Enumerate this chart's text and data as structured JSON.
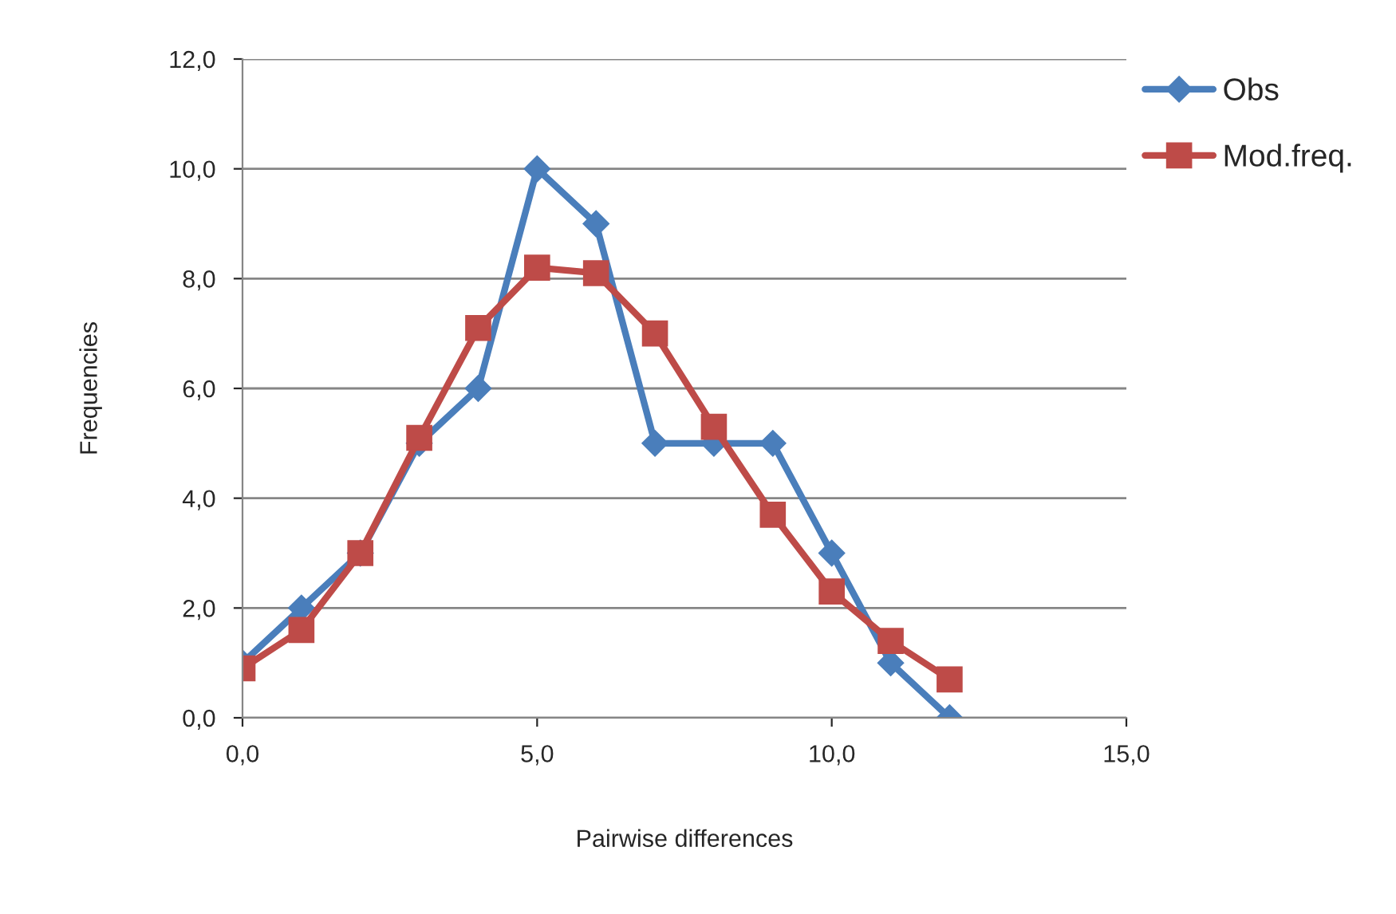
{
  "chart_data": {
    "type": "line",
    "xlabel": "Pairwise differences",
    "ylabel": "Frequencies",
    "x": [
      0,
      1,
      2,
      3,
      4,
      5,
      6,
      7,
      8,
      9,
      10,
      11,
      12
    ],
    "series": [
      {
        "name": "Obs",
        "color": "#4a7ebb",
        "marker": "diamond",
        "values": [
          1,
          2,
          3,
          5,
          6,
          10,
          9,
          5,
          5,
          5,
          3,
          1,
          0
        ]
      },
      {
        "name": "Mod.freq.",
        "color": "#be4b48",
        "marker": "square",
        "values": [
          0.9,
          1.6,
          3.0,
          5.1,
          7.1,
          8.2,
          8.1,
          7.0,
          5.3,
          3.7,
          2.3,
          1.4,
          0.7
        ]
      }
    ],
    "xlim": [
      0,
      15
    ],
    "xticks": [
      {
        "value": 0,
        "label": "0,0"
      },
      {
        "value": 5,
        "label": "5,0"
      },
      {
        "value": 10,
        "label": "10,0"
      },
      {
        "value": 15,
        "label": "15,0"
      }
    ],
    "ylim": [
      0,
      12
    ],
    "yticks": [
      {
        "value": 0,
        "label": "0,0"
      },
      {
        "value": 2,
        "label": "2,0"
      },
      {
        "value": 4,
        "label": "4,0"
      },
      {
        "value": 6,
        "label": "6,0"
      },
      {
        "value": 8,
        "label": "8,0"
      },
      {
        "value": 10,
        "label": "10,0"
      },
      {
        "value": 12,
        "label": "12,0"
      }
    ],
    "grid": "y",
    "legend": "top right",
    "line_style": "solid"
  }
}
